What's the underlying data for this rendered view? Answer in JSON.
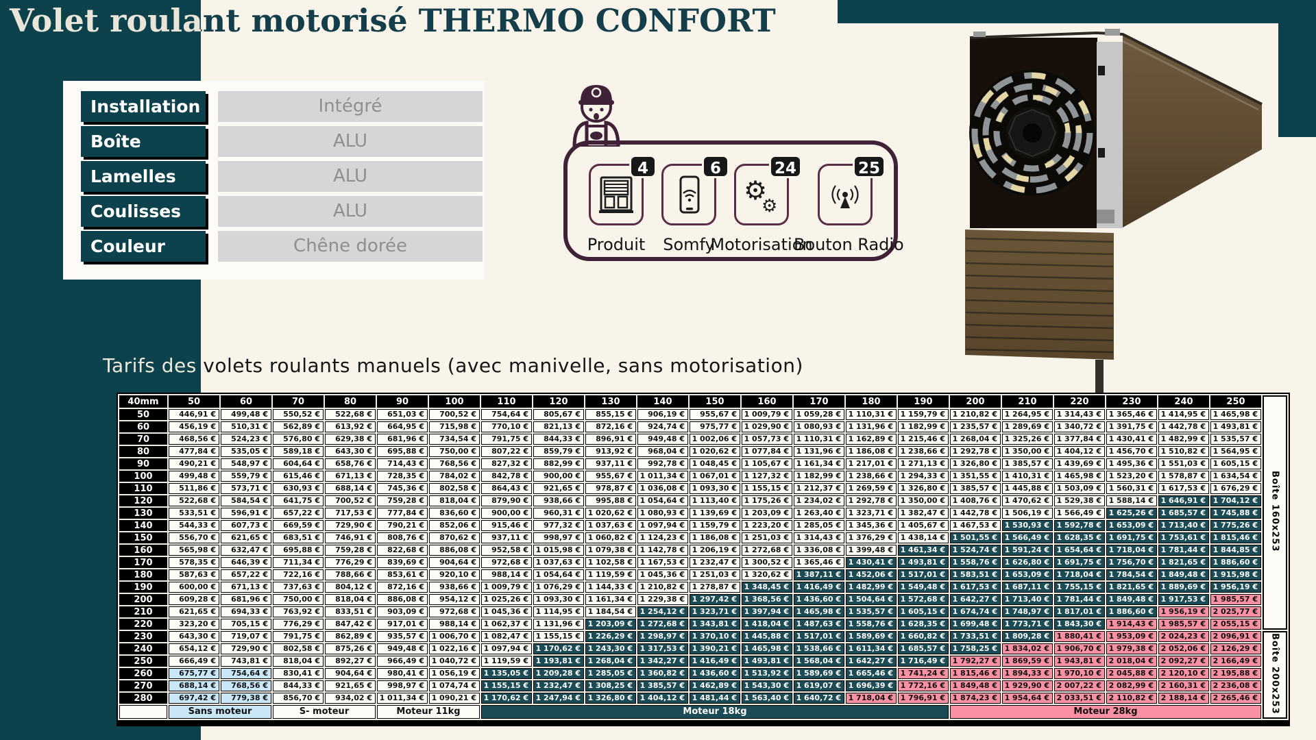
{
  "title": "Volet roulant motorisé THERMO CONFORT",
  "subtitle": "Tarifs des volets roulants manuels (avec manivelle, sans motorisation)",
  "specs": {
    "rows": [
      {
        "label": "Installation",
        "value": "Intégré"
      },
      {
        "label": "Boîte",
        "value": "ALU"
      },
      {
        "label": "Lamelles",
        "value": "ALU"
      },
      {
        "label": "Coulisses",
        "value": "ALU"
      },
      {
        "label": "Couleur",
        "value": "Chêne dorée"
      }
    ]
  },
  "features": {
    "items": [
      {
        "icon": "shutter-window-icon",
        "badge": "4",
        "label": "Produit"
      },
      {
        "icon": "smartphone-wifi-icon",
        "badge": "6",
        "label": "Somfy"
      },
      {
        "icon": "gears-icon",
        "badge": "24",
        "label": "Motorisation"
      },
      {
        "icon": "radio-antenna-icon",
        "badge": "25",
        "label": "Bouton Radio"
      }
    ]
  },
  "colors": {
    "teal_background": "#0d424c",
    "teal_cell": "#1b4b54",
    "pink_cell": "#f990a3",
    "blue_cell": "#c9e7f7",
    "cream_background": "#f8f4ea",
    "plum_accent": "#3f2138",
    "black": "#000000"
  },
  "pricing_table": {
    "corner_label": "40mm",
    "currency": "€",
    "columns": [
      "50",
      "60",
      "70",
      "80",
      "90",
      "100",
      "110",
      "120",
      "130",
      "140",
      "150",
      "160",
      "170",
      "180",
      "190",
      "200",
      "210",
      "220",
      "230",
      "240",
      "250"
    ],
    "side_labels": [
      "Boîte 160x253",
      "Boîte 200x253"
    ],
    "footer": [
      {
        "label": "Sans moteur",
        "span": 2,
        "style": "blue"
      },
      {
        "label": "S- moteur",
        "span": 2,
        "style": "white"
      },
      {
        "label": "Moteur 11kg",
        "span": 2,
        "style": "white"
      },
      {
        "label": "Moteur 18kg",
        "span": 9,
        "style": "teal"
      },
      {
        "label": "Moteur 28kg",
        "span": 6,
        "style": "pink"
      }
    ],
    "rows": [
      {
        "label": "50",
        "teal_from": null,
        "pink_from": null,
        "blue": [],
        "values": [
          "446,91",
          "499,48",
          "550,52",
          "522,68",
          "651,03",
          "700,52",
          "754,64",
          "805,67",
          "855,15",
          "906,19",
          "955,67",
          "1 009,79",
          "1 059,28",
          "1 110,31",
          "1 159,79",
          "1 210,82",
          "1 264,95",
          "1 314,43",
          "1 365,46",
          "1 414,95",
          "1 465,98"
        ]
      },
      {
        "label": "60",
        "teal_from": null,
        "pink_from": null,
        "blue": [],
        "values": [
          "456,19",
          "510,31",
          "562,89",
          "613,92",
          "664,95",
          "715,98",
          "770,10",
          "821,13",
          "872,16",
          "924,74",
          "975,77",
          "1 029,90",
          "1 080,93",
          "1 131,96",
          "1 182,99",
          "1 235,57",
          "1 289,69",
          "1 340,72",
          "1 391,75",
          "1 442,78",
          "1 493,81"
        ]
      },
      {
        "label": "70",
        "teal_from": null,
        "pink_from": null,
        "blue": [],
        "values": [
          "468,56",
          "524,23",
          "576,80",
          "629,38",
          "681,96",
          "734,54",
          "791,75",
          "844,33",
          "896,91",
          "949,48",
          "1 002,06",
          "1 057,73",
          "1 110,31",
          "1 162,89",
          "1 215,46",
          "1 268,04",
          "1 325,26",
          "1 377,84",
          "1 430,41",
          "1 482,99",
          "1 535,57"
        ]
      },
      {
        "label": "80",
        "teal_from": null,
        "pink_from": null,
        "blue": [],
        "values": [
          "477,84",
          "535,05",
          "589,18",
          "643,30",
          "695,88",
          "750,00",
          "807,22",
          "859,79",
          "913,92",
          "968,04",
          "1 020,62",
          "1 077,84",
          "1 131,96",
          "1 186,08",
          "1 238,66",
          "1 292,78",
          "1 350,00",
          "1 404,12",
          "1 456,70",
          "1 510,82",
          "1 564,95"
        ]
      },
      {
        "label": "90",
        "teal_from": null,
        "pink_from": null,
        "blue": [],
        "values": [
          "490,21",
          "548,97",
          "604,64",
          "658,76",
          "714,43",
          "768,56",
          "827,32",
          "882,99",
          "937,11",
          "992,78",
          "1 048,45",
          "1 105,67",
          "1 161,34",
          "1 217,01",
          "1 271,13",
          "1 326,80",
          "1 385,57",
          "1 439,69",
          "1 495,36",
          "1 551,03",
          "1 605,15"
        ]
      },
      {
        "label": "100",
        "teal_from": null,
        "pink_from": null,
        "blue": [],
        "values": [
          "499,48",
          "559,79",
          "615,46",
          "671,13",
          "728,35",
          "784,02",
          "842,78",
          "900,00",
          "955,67",
          "1 011,34",
          "1 067,01",
          "1 127,32",
          "1 182,99",
          "1 238,66",
          "1 294,33",
          "1 351,55",
          "1 410,31",
          "1 465,98",
          "1 523,20",
          "1 578,87",
          "1 634,54"
        ]
      },
      {
        "label": "110",
        "teal_from": null,
        "pink_from": null,
        "blue": [],
        "values": [
          "511,86",
          "573,71",
          "630,93",
          "688,14",
          "745,36",
          "802,58",
          "864,43",
          "921,65",
          "978,87",
          "1 036,08",
          "1 093,30",
          "1 155,15",
          "1 212,37",
          "1 269,59",
          "1 326,80",
          "1 385,57",
          "1 445,88",
          "1 503,09",
          "1 560,31",
          "1 617,53",
          "1 676,29"
        ]
      },
      {
        "label": "120",
        "teal_from": 19,
        "pink_from": null,
        "blue": [],
        "values": [
          "522,68",
          "584,54",
          "641,75",
          "700,52",
          "759,28",
          "818,04",
          "879,90",
          "938,66",
          "995,88",
          "1 054,64",
          "1 113,40",
          "1 175,26",
          "1 234,02",
          "1 292,78",
          "1 350,00",
          "1 408,76",
          "1 470,62",
          "1 529,38",
          "1 588,14",
          "1 646,91",
          "1 704,12"
        ]
      },
      {
        "label": "130",
        "teal_from": 18,
        "pink_from": null,
        "blue": [],
        "values": [
          "533,51",
          "596,91",
          "657,22",
          "717,53",
          "777,84",
          "836,60",
          "900,00",
          "960,31",
          "1 020,62",
          "1 080,93",
          "1 139,69",
          "1 203,09",
          "1 263,40",
          "1 323,71",
          "1 382,47",
          "1 442,78",
          "1 506,19",
          "1 566,49",
          "1 625,26",
          "1 685,57",
          "1 745,88"
        ]
      },
      {
        "label": "140",
        "teal_from": 16,
        "pink_from": null,
        "blue": [],
        "values": [
          "544,33",
          "607,73",
          "669,59",
          "729,90",
          "790,21",
          "852,06",
          "915,46",
          "977,32",
          "1 037,63",
          "1 097,94",
          "1 159,79",
          "1 223,20",
          "1 285,05",
          "1 345,36",
          "1 405,67",
          "1 467,53",
          "1 530,93",
          "1 592,78",
          "1 653,09",
          "1 713,40",
          "1 775,26"
        ]
      },
      {
        "label": "150",
        "teal_from": 15,
        "pink_from": null,
        "blue": [],
        "values": [
          "556,70",
          "621,65",
          "683,51",
          "746,91",
          "808,76",
          "870,62",
          "937,11",
          "998,97",
          "1 060,82",
          "1 124,23",
          "1 186,08",
          "1 251,03",
          "1 314,43",
          "1 376,29",
          "1 438,14",
          "1 501,55",
          "1 566,49",
          "1 628,35",
          "1 691,75",
          "1 753,61",
          "1 815,46"
        ]
      },
      {
        "label": "160",
        "teal_from": 14,
        "pink_from": null,
        "blue": [],
        "values": [
          "565,98",
          "632,47",
          "695,88",
          "759,28",
          "822,68",
          "886,08",
          "952,58",
          "1 015,98",
          "1 079,38",
          "1 142,78",
          "1 206,19",
          "1 272,68",
          "1 336,08",
          "1 399,48",
          "1 461,34",
          "1 524,74",
          "1 591,24",
          "1 654,64",
          "1 718,04",
          "1 781,44",
          "1 844,85"
        ]
      },
      {
        "label": "170",
        "teal_from": 13,
        "pink_from": null,
        "blue": [],
        "values": [
          "578,35",
          "646,39",
          "711,34",
          "776,29",
          "839,69",
          "904,64",
          "972,68",
          "1 037,63",
          "1 102,58",
          "1 167,53",
          "1 232,47",
          "1 300,52",
          "1 365,46",
          "1 430,41",
          "1 493,81",
          "1 558,76",
          "1 626,80",
          "1 691,75",
          "1 756,70",
          "1 821,65",
          "1 886,60"
        ]
      },
      {
        "label": "180",
        "teal_from": 12,
        "pink_from": null,
        "blue": [],
        "values": [
          "587,63",
          "657,22",
          "722,16",
          "788,66",
          "853,61",
          "920,10",
          "988,14",
          "1 054,64",
          "1 119,59",
          "1 045,36",
          "1 251,03",
          "1 320,62",
          "1 387,11",
          "1 452,06",
          "1 517,01",
          "1 583,51",
          "1 653,09",
          "1 718,04",
          "1 784,54",
          "1 849,48",
          "1 915,98"
        ]
      },
      {
        "label": "190",
        "teal_from": 11,
        "pink_from": null,
        "blue": [],
        "values": [
          "600,00",
          "671,13",
          "737,63",
          "804,12",
          "872,16",
          "938,66",
          "1 009,79",
          "1 076,29",
          "1 144,33",
          "1 210,82",
          "1 278,87",
          "1 348,45",
          "1 416,49",
          "1 482,99",
          "1 549,48",
          "1 617,53",
          "1 687,11",
          "1 755,15",
          "1 821,65",
          "1 889,69",
          "1 956,19"
        ]
      },
      {
        "label": "200",
        "teal_from": 10,
        "pink_from": 20,
        "blue": [],
        "values": [
          "609,28",
          "681,96",
          "750,00",
          "818,04",
          "886,08",
          "954,12",
          "1 025,26",
          "1 093,30",
          "1 161,34",
          "1 229,38",
          "1 297,42",
          "1 368,56",
          "1 436,60",
          "1 504,64",
          "1 572,68",
          "1 642,27",
          "1 713,40",
          "1 781,44",
          "1 849,48",
          "1 917,53",
          "1 985,57"
        ]
      },
      {
        "label": "210",
        "teal_from": 9,
        "pink_from": 19,
        "blue": [],
        "values": [
          "621,65",
          "694,33",
          "763,92",
          "833,51",
          "903,09",
          "972,68",
          "1 045,36",
          "1 114,95",
          "1 184,54",
          "1 254,12",
          "1 323,71",
          "1 397,94",
          "1 465,98",
          "1 535,57",
          "1 605,15",
          "1 674,74",
          "1 748,97",
          "1 817,01",
          "1 886,60",
          "1 956,19",
          "2 025,77"
        ]
      },
      {
        "label": "220",
        "teal_from": 8,
        "pink_from": 18,
        "blue": [],
        "values": [
          "323,20",
          "705,15",
          "776,29",
          "847,42",
          "917,01",
          "988,14",
          "1 062,37",
          "1 131,96",
          "1 203,09",
          "1 272,68",
          "1 343,81",
          "1 418,04",
          "1 487,63",
          "1 558,76",
          "1 628,35",
          "1 699,48",
          "1 773,71",
          "1 843,30",
          "1 914,43",
          "1 985,57",
          "2 055,15"
        ]
      },
      {
        "label": "230",
        "teal_from": 8,
        "pink_from": 17,
        "blue": [],
        "values": [
          "643,30",
          "719,07",
          "791,75",
          "862,89",
          "935,57",
          "1 006,70",
          "1 082,47",
          "1 155,15",
          "1 226,29",
          "1 298,97",
          "1 370,10",
          "1 445,88",
          "1 517,01",
          "1 589,69",
          "1 660,82",
          "1 733,51",
          "1 809,28",
          "1 880,41",
          "1 953,09",
          "2 024,23",
          "2 096,91"
        ]
      },
      {
        "label": "240",
        "teal_from": 7,
        "pink_from": 16,
        "blue": [],
        "values": [
          "654,12",
          "729,90",
          "802,58",
          "875,26",
          "949,48",
          "1 022,16",
          "1 097,94",
          "1 170,62",
          "1 243,30",
          "1 317,53",
          "1 390,21",
          "1 465,98",
          "1 538,66",
          "1 611,34",
          "1 685,57",
          "1 758,25",
          "1 834,02",
          "1 906,70",
          "1 979,38",
          "2 052,06",
          "2 126,29"
        ]
      },
      {
        "label": "250",
        "teal_from": 7,
        "pink_from": 15,
        "blue": [],
        "values": [
          "666,49",
          "743,81",
          "818,04",
          "892,27",
          "966,49",
          "1 040,72",
          "1 119,59",
          "1 193,81",
          "1 268,04",
          "1 342,27",
          "1 416,49",
          "1 493,81",
          "1 568,04",
          "1 642,27",
          "1 716,49",
          "1 792,27",
          "1 869,59",
          "1 943,81",
          "2 018,04",
          "2 092,27",
          "2 166,49"
        ]
      },
      {
        "label": "260",
        "teal_from": 6,
        "pink_from": 14,
        "blue": [
          0,
          1
        ],
        "values": [
          "675,77",
          "754,64",
          "830,41",
          "904,64",
          "980,41",
          "1 056,19",
          "1 135,05",
          "1 209,28",
          "1 285,05",
          "1 360,82",
          "1 436,60",
          "1 513,92",
          "1 589,69",
          "1 665,46",
          "1 741,24",
          "1 815,46",
          "1 894,33",
          "1 970,10",
          "2 045,88",
          "2 120,10",
          "2 195,88"
        ]
      },
      {
        "label": "270",
        "teal_from": 6,
        "pink_from": 14,
        "blue": [
          0,
          1
        ],
        "values": [
          "688,14",
          "768,56",
          "844,33",
          "921,65",
          "998,97",
          "1 074,74",
          "1 155,15",
          "1 232,47",
          "1 308,25",
          "1 385,57",
          "1 462,89",
          "1 543,30",
          "1 619,07",
          "1 696,39",
          "1 772,16",
          "1 849,48",
          "1 929,90",
          "2 007,22",
          "2 082,99",
          "2 160,31",
          "2 236,08"
        ]
      },
      {
        "label": "280",
        "teal_from": 6,
        "pink_from": 13,
        "blue": [
          0,
          1
        ],
        "values": [
          "697,42",
          "779,38",
          "856,70",
          "934,02",
          "1 011,34",
          "1 090,21",
          "1 170,62",
          "1 247,94",
          "1 326,80",
          "1 404,12",
          "1 481,44",
          "1 563,40",
          "1 640,72",
          "1 718,04",
          "1 796,91",
          "1 874,23",
          "1 954,64",
          "2 033,51",
          "2 110,82",
          "2 188,14",
          "2 265,46"
        ]
      }
    ]
  }
}
